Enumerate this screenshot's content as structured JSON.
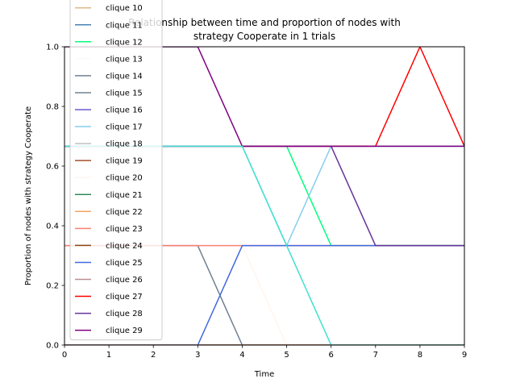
{
  "chart_data": {
    "type": "line",
    "title_lines": [
      "Relationship between time and proportion of nodes with",
      "strategy Cooperate in 1 trials"
    ],
    "xlabel": "Time",
    "ylabel": "Proportion of nodes with strategy Cooperate",
    "xlim": [
      0,
      9
    ],
    "ylim": [
      0,
      1
    ],
    "x_ticks": [
      0,
      1,
      2,
      3,
      4,
      5,
      6,
      7,
      8,
      9
    ],
    "y_ticks": [
      0.0,
      0.2,
      0.4,
      0.6,
      0.8,
      1.0
    ],
    "y_tick_labels": [
      "0.0",
      "0.2",
      "0.4",
      "0.6",
      "0.8",
      "1.0"
    ],
    "grid": false,
    "legend_position": "upper-left",
    "x": [
      0,
      1,
      2,
      3,
      4,
      5,
      6,
      7,
      8,
      9
    ],
    "series": [
      {
        "name": "clique 10",
        "color": "#deb887",
        "values": [
          0,
          0,
          0,
          0,
          0,
          0,
          0,
          0,
          0,
          0
        ]
      },
      {
        "name": "clique 11",
        "color": "#4682b4",
        "values": [
          0,
          0,
          0,
          0,
          0,
          0,
          0,
          0,
          0,
          0
        ]
      },
      {
        "name": "clique 12",
        "color": "#00ff7f",
        "values": [
          0.6667,
          0.6667,
          0.6667,
          0.6667,
          0.6667,
          0.6667,
          0.3333,
          0.3333,
          0.3333,
          0.3333
        ]
      },
      {
        "name": "clique 13",
        "color": "#fffafa",
        "values": [
          0,
          0,
          0,
          0,
          0,
          0,
          0,
          0,
          0,
          0
        ]
      },
      {
        "name": "clique 14",
        "color": "#708090",
        "values": [
          0,
          0,
          0,
          0,
          0,
          0,
          0,
          0,
          0,
          0
        ]
      },
      {
        "name": "clique 15",
        "color": "#708090",
        "values": [
          0.3333,
          0.3333,
          0.3333,
          0.3333,
          0,
          0,
          0,
          0,
          0,
          0
        ]
      },
      {
        "name": "clique 16",
        "color": "#6a5acd",
        "values": [
          0.6667,
          0.6667,
          0.6667,
          0.6667,
          0.6667,
          0.6667,
          0.6667,
          0.6667,
          0.6667,
          0.6667
        ]
      },
      {
        "name": "clique 17",
        "color": "#87ceeb",
        "values": [
          0.6667,
          0.6667,
          0.6667,
          0.6667,
          0.6667,
          0.3333,
          0.6667,
          0.6667,
          0.6667,
          0.6667
        ]
      },
      {
        "name": "clique 18",
        "color": "#c0c0c0",
        "values": [
          0,
          0,
          0,
          0,
          0,
          0,
          0,
          0,
          0,
          0
        ]
      },
      {
        "name": "clique 19",
        "color": "#a0522d",
        "values": [
          0,
          0,
          0,
          0,
          0,
          0,
          0,
          0,
          0,
          0
        ]
      },
      {
        "name": "clique 20",
        "color": "#fff5ee",
        "values": [
          0,
          0,
          0,
          0,
          0.3333,
          0,
          0,
          0,
          0,
          0
        ]
      },
      {
        "name": "clique 21",
        "color": "#2e8b57",
        "values": [
          0,
          0,
          0,
          0,
          0,
          0,
          0,
          0,
          0,
          0
        ]
      },
      {
        "name": "clique 22",
        "color": "#f4a460",
        "values": [
          0,
          0,
          0,
          0,
          0,
          0,
          0,
          0,
          0,
          0
        ]
      },
      {
        "name": "clique 23",
        "color": "#fa8072",
        "values": [
          0.3333,
          0.3333,
          0.3333,
          0.3333,
          0.3333,
          0.3333,
          0.3333,
          0.3333,
          0.3333,
          0.3333
        ]
      },
      {
        "name": "clique 24",
        "color": "#8b4513",
        "values": [
          0,
          0,
          0,
          0,
          0,
          0,
          0,
          0,
          0,
          0
        ]
      },
      {
        "name": "clique 25",
        "color": "#4169e1",
        "values": [
          0,
          0,
          0,
          0,
          0.3333,
          0.3333,
          0.3333,
          0.3333,
          0.3333,
          0.3333
        ]
      },
      {
        "name": "clique 26",
        "color": "#bc8f8f",
        "values": [
          0,
          0,
          0,
          0,
          0,
          0,
          0,
          0,
          0,
          0
        ]
      },
      {
        "name": "clique 27",
        "color": "#ff0000",
        "values": [
          0.6667,
          0.6667,
          0.6667,
          0.6667,
          0.6667,
          0.6667,
          0.6667,
          0.6667,
          1.0,
          0.6667
        ]
      },
      {
        "name": "clique 28",
        "color": "#663399",
        "values": [
          0.6667,
          0.6667,
          0.6667,
          0.6667,
          0.6667,
          0.6667,
          0.6667,
          0.3333,
          0.3333,
          0.3333
        ]
      },
      {
        "name": "clique 29",
        "color": "#800080",
        "values": [
          1.0,
          1.0,
          1.0,
          1.0,
          0.6667,
          0.6667,
          0.6667,
          0.6667,
          0.6667,
          0.6667
        ]
      }
    ],
    "extra_line": {
      "color": "#40e0d0",
      "values": [
        0.6667,
        0.6667,
        0.6667,
        0.6667,
        0.6667,
        0.3333,
        0.0,
        0.0,
        0.0,
        0.0
      ]
    }
  }
}
